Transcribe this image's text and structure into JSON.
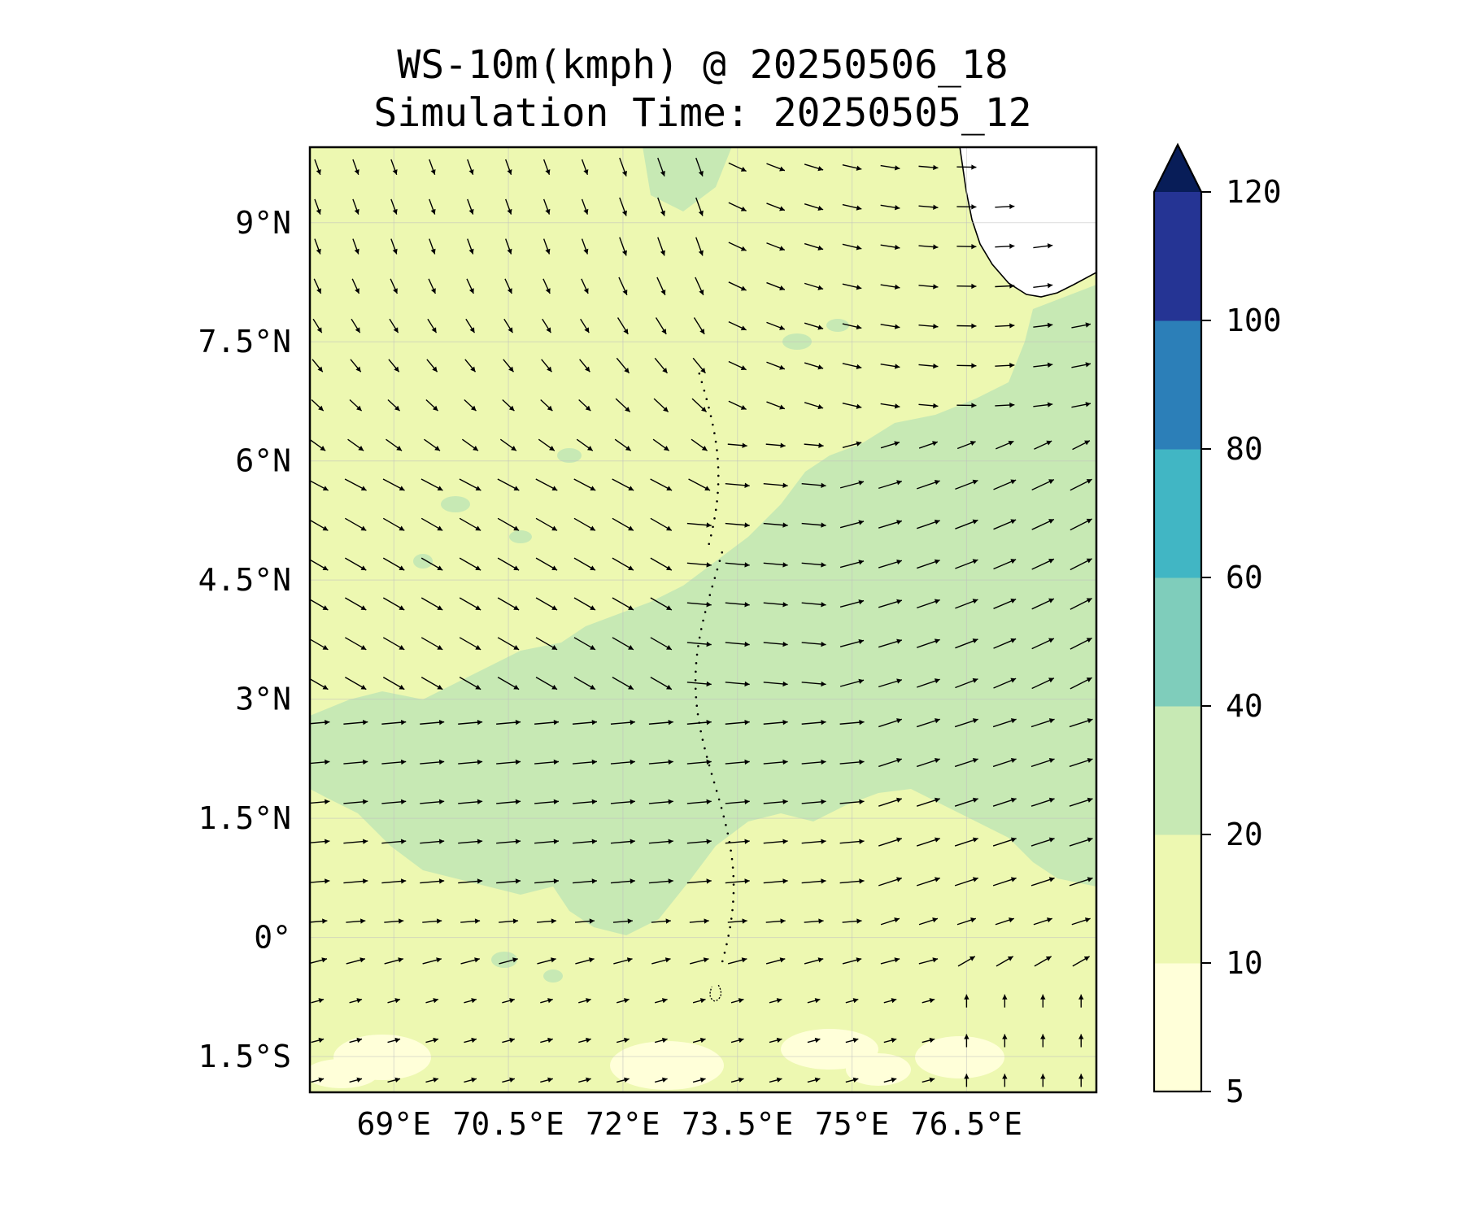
{
  "title": {
    "line1": "WS-10m(kmph) @ 20250506_18",
    "line2": "Simulation Time: 20250505_12"
  },
  "map": {
    "lon_range": [
      67.9,
      78.2
    ],
    "lat_range": [
      -1.95,
      9.95
    ],
    "lon_ticks": [
      {
        "value": 69,
        "label": "69°E"
      },
      {
        "value": 70.5,
        "label": "70.5°E"
      },
      {
        "value": 72,
        "label": "72°E"
      },
      {
        "value": 73.5,
        "label": "73.5°E"
      },
      {
        "value": 75,
        "label": "75°E"
      },
      {
        "value": 76.5,
        "label": "76.5°E"
      }
    ],
    "lat_ticks": [
      {
        "value": 9,
        "label": "9°N"
      },
      {
        "value": 7.5,
        "label": "7.5°N"
      },
      {
        "value": 6,
        "label": "6°N"
      },
      {
        "value": 4.5,
        "label": "4.5°N"
      },
      {
        "value": 3,
        "label": "3°N"
      },
      {
        "value": 1.5,
        "label": "1.5°N"
      },
      {
        "value": 0,
        "label": "0°"
      },
      {
        "value": -1.5,
        "label": "1.5°S"
      }
    ],
    "gridlines": true,
    "land": "Sri Lanka / southern India coastline (top-right)",
    "islands": "Maldives atolls (dotted, ~73°E–73.7°E)"
  },
  "colorbar": {
    "levels": [
      5,
      10,
      20,
      40,
      60,
      80,
      100,
      120
    ],
    "tick_labels": [
      "5",
      "10",
      "20",
      "40",
      "60",
      "80",
      "100",
      "120"
    ],
    "colors": [
      "#ffffd9",
      "#edf8b1",
      "#c7e9b4",
      "#7fcdbb",
      "#41b6c4",
      "#2c7fb8",
      "#253494",
      "#081d58"
    ],
    "extend": "max"
  },
  "chart_data": {
    "type": "heatmap",
    "title": "WS-10m(kmph) @ 20250506_18",
    "subtitle": "Simulation Time: 20250505_12",
    "field": "10 m wind speed (kmph) with wind direction vectors",
    "xlim": [
      67.9,
      78.2
    ],
    "ylim": [
      -1.95,
      9.95
    ],
    "dominant_speed_ranges": [
      {
        "region": "north and west of domain",
        "range_kmph": "10-20"
      },
      {
        "region": "central band 0.5°N-4°N west of 73.5°E",
        "range_kmph": "20-40"
      },
      {
        "region": "east of 74°E from 0.5°N to 7.5°N",
        "range_kmph": "20-40"
      },
      {
        "region": "south edge near 1.5°S",
        "range_kmph": "5-10"
      }
    ],
    "wind_direction": [
      {
        "region": "north of 6°N, west of 73°E",
        "flow": "from northwest (toward southeast)"
      },
      {
        "region": "0°-3°N",
        "flow": "westerly (toward east)"
      },
      {
        "region": "east of 75°E, 3°N-7°N",
        "flow": "west-southwesterly (toward northeast)"
      },
      {
        "region": "south-east corner near 1.5°S, 76.5°E+",
        "flow": "southerly (toward north)"
      }
    ]
  }
}
